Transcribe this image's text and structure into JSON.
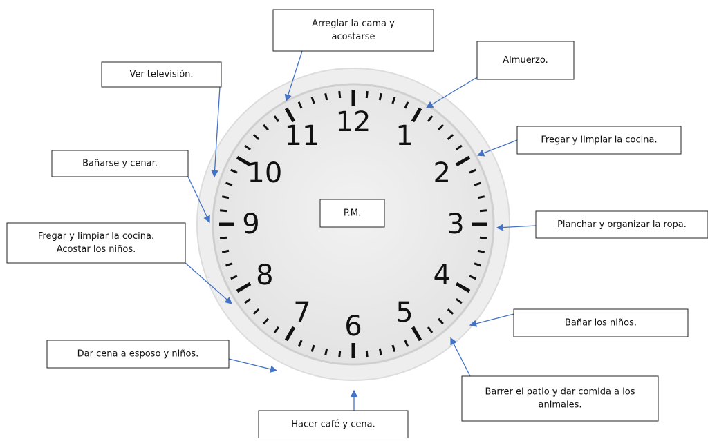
{
  "clock": {
    "numbers": [
      "12",
      "1",
      "2",
      "3",
      "4",
      "5",
      "6",
      "7",
      "8",
      "9",
      "10",
      "11"
    ],
    "center_label": "P.M."
  },
  "labels": [
    {
      "lines": [
        "Arreglar la cama y",
        "acostarse"
      ]
    },
    {
      "lines": [
        "Almuerzo."
      ]
    },
    {
      "lines": [
        "Ver televisión."
      ]
    },
    {
      "lines": [
        "Fregar y limpiar la cocina."
      ]
    },
    {
      "lines": [
        "Bañarse y cenar."
      ]
    },
    {
      "lines": [
        "Planchar y organizar la ropa."
      ]
    },
    {
      "lines": [
        "Fregar y limpiar la cocina.",
        "Acostar los niños."
      ]
    },
    {
      "lines": [
        "Bañar los niños."
      ]
    },
    {
      "lines": [
        "Dar cena a esposo y niños."
      ]
    },
    {
      "lines": [
        "Barrer el patio y dar comida a los",
        "animales."
      ]
    },
    {
      "lines": [
        "Hacer café y cena."
      ]
    }
  ]
}
